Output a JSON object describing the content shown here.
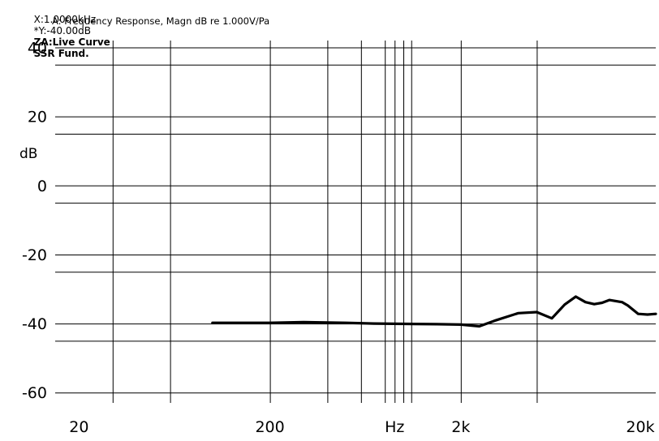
{
  "header": {
    "cursor_x": "X:1.0000kHz",
    "cursor_y": "*Y:-40.00dB",
    "za": "ZA:Live Curve",
    "ssr": "SSR Fund.",
    "subtitle": "A: Frequency Response, Magn dB re 1.000V/Pa"
  },
  "chart_data": {
    "type": "line",
    "title": "A: Frequency Response, Magn dB re 1.000V/Pa",
    "xlabel": "Hz",
    "ylabel": "dB",
    "x_scale": "log",
    "xlim": [
      15,
      21000
    ],
    "ylim": [
      -63,
      42
    ],
    "grid": true,
    "x_ticks": [
      "20",
      "200",
      "Hz",
      "2k",
      "20k"
    ],
    "y_ticks": [
      "40",
      "20",
      "0",
      "-20",
      "-40",
      "-60"
    ],
    "series": [
      {
        "x": [
          100,
          200,
          300,
          500,
          700,
          1000,
          1500,
          2000,
          2500,
          3000,
          4000,
          5000,
          6000,
          7000,
          8000,
          9000,
          10000,
          11000,
          12000,
          14000,
          15000,
          17000,
          19000,
          21000
        ],
        "y": [
          -39.8,
          -39.8,
          -39.6,
          -39.8,
          -40.0,
          -40.1,
          -40.2,
          -40.3,
          -40.8,
          -39.2,
          -37.0,
          -36.7,
          -38.5,
          -34.5,
          -32.2,
          -33.8,
          -34.4,
          -34.0,
          -33.2,
          -33.8,
          -34.8,
          -37.2,
          -37.4,
          -37.2
        ]
      }
    ]
  }
}
